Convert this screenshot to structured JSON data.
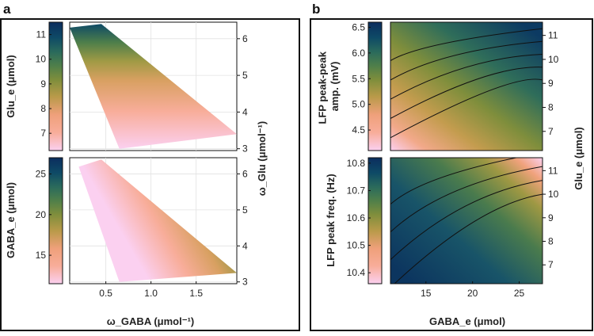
{
  "figure": {
    "panel_a_letter": "a",
    "panel_b_letter": "b",
    "colormap": [
      "#fbd0f0",
      "#f8ad9a",
      "#efa07a",
      "#b99a49",
      "#7f8e3c",
      "#4f7f4a",
      "#2a6a5c",
      "#0e4a66",
      "#0b2d5e"
    ]
  },
  "chart_data": [
    {
      "id": "a-top",
      "type": "heatmap",
      "xlabel": "ω_GABA (μmol⁻¹)",
      "ylabel_right": "ω_Glu (μmol⁻¹)",
      "colorbar_label": "Glu_e (μmol)",
      "xlim": [
        0.1,
        1.95
      ],
      "ylim": [
        2.95,
        6.45
      ],
      "clim": [
        6.3,
        11.5
      ],
      "colorbar_ticks": [
        7,
        8,
        9,
        10,
        11
      ],
      "y_ticks": [
        3,
        4,
        5,
        6
      ],
      "region": [
        [
          0.1,
          6.3
        ],
        [
          0.45,
          6.4
        ],
        [
          1.95,
          3.4
        ],
        [
          0.65,
          3.0
        ]
      ]
    },
    {
      "id": "a-bottom",
      "type": "heatmap",
      "xlabel": "ω_GABA (μmol⁻¹)",
      "ylabel_right": "ω_Glu (μmol⁻¹)",
      "colorbar_label": "GABA_e (μmol)",
      "xlim": [
        0.1,
        1.95
      ],
      "ylim": [
        2.95,
        6.45
      ],
      "clim": [
        11.5,
        27
      ],
      "colorbar_ticks": [
        15,
        20,
        25
      ],
      "y_ticks": [
        3,
        4,
        5,
        6
      ],
      "x_ticks": [
        0.5,
        1.0,
        1.5
      ],
      "x_tick_labels": [
        "0.5",
        "1.0",
        "1.5"
      ],
      "region": [
        [
          0.2,
          6.2
        ],
        [
          0.45,
          6.4
        ],
        [
          1.95,
          3.25
        ],
        [
          0.65,
          3.0
        ]
      ]
    },
    {
      "id": "b-top",
      "type": "heatmap",
      "xlabel": "GABA_e (μmol)",
      "ylabel_right": "Glu_e (μmol)",
      "colorbar_label": "LFP peak-peak amp. (mV)",
      "colorbar_label_lines": [
        "LFP peak-peak",
        "amp. (mV)"
      ],
      "xlim": [
        11.2,
        27.5
      ],
      "ylim": [
        6.2,
        11.55
      ],
      "clim": [
        4.1,
        6.6
      ],
      "colorbar_ticks": [
        4.5,
        5.0,
        5.5,
        6.0,
        6.5
      ],
      "colorbar_tick_labels": [
        "4.5",
        "5.0",
        "5.5",
        "6.0",
        "6.5"
      ],
      "y_ticks": [
        7,
        8,
        9,
        10,
        11
      ],
      "contour_levels": [
        4.5,
        5.0,
        5.5,
        6.0,
        6.5
      ]
    },
    {
      "id": "b-bottom",
      "type": "heatmap",
      "xlabel": "GABA_e (μmol)",
      "ylabel_right": "Glu_e (μmol)",
      "colorbar_label": "LFP peak freq. (Hz)",
      "xlim": [
        11.2,
        27.5
      ],
      "ylim": [
        6.2,
        11.55
      ],
      "clim": [
        10.36,
        10.82
      ],
      "colorbar_ticks": [
        10.4,
        10.5,
        10.6,
        10.7,
        10.8
      ],
      "colorbar_tick_labels": [
        "10.4",
        "10.5",
        "10.6",
        "10.7",
        "10.8"
      ],
      "y_ticks": [
        7,
        8,
        9,
        10,
        11
      ],
      "x_ticks": [
        15,
        20,
        25
      ],
      "contour_levels": [
        10.45,
        10.55,
        10.65,
        10.75
      ]
    }
  ]
}
